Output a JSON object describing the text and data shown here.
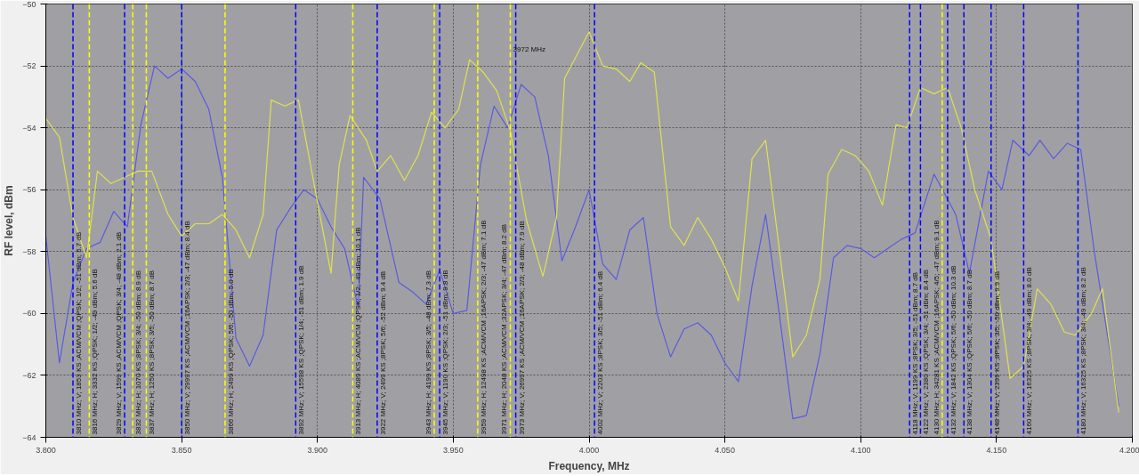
{
  "chart_data": {
    "type": "line",
    "xlabel": "Frequency, MHz",
    "ylabel": "RF level, dBm",
    "xlim": [
      3.8,
      4.2
    ],
    "xticks": [
      {
        "value": 3.8,
        "label": "3.800"
      },
      {
        "value": 3.85,
        "label": "3.850"
      },
      {
        "value": 3.9,
        "label": "3.900"
      },
      {
        "value": 3.95,
        "label": "3.950"
      },
      {
        "value": 4.0,
        "label": "4.000"
      },
      {
        "value": 4.05,
        "label": "4.050"
      },
      {
        "value": 4.1,
        "label": "4.100"
      },
      {
        "value": 4.15,
        "label": "4.150"
      },
      {
        "value": 4.2,
        "label": "4.200"
      }
    ],
    "ylim": [
      -64,
      -50
    ],
    "yticks": [
      -64,
      -62,
      -60,
      -58,
      -56,
      -54,
      -52,
      -50
    ],
    "grid": true,
    "marker": "none",
    "line_style": "solid",
    "series": [
      {
        "color": "#5a5ae0",
        "x": [
          3.8,
          3.805,
          3.81,
          3.815,
          3.82,
          3.825,
          3.83,
          3.835,
          3.84,
          3.845,
          3.85,
          3.855,
          3.86,
          3.865,
          3.87,
          3.875,
          3.88,
          3.885,
          3.89,
          3.895,
          3.9,
          3.905,
          3.91,
          3.915,
          3.917,
          3.923,
          3.93,
          3.935,
          3.94,
          3.945,
          3.95,
          3.955,
          3.96,
          3.965,
          3.97,
          3.975,
          3.98,
          3.985,
          3.99,
          3.995,
          4.0,
          4.005,
          4.01,
          4.015,
          4.02,
          4.025,
          4.03,
          4.035,
          4.04,
          4.045,
          4.05,
          4.055,
          4.06,
          4.065,
          4.07,
          4.075,
          4.08,
          4.085,
          4.09,
          4.095,
          4.1,
          4.105,
          4.11,
          4.115,
          4.12,
          4.127,
          4.135,
          4.14,
          4.147,
          4.152,
          4.156,
          4.162,
          4.166,
          4.171,
          4.176,
          4.181,
          4.186,
          4.195
        ],
        "values": [
          -57.5,
          -61.6,
          -59.0,
          -57.9,
          -57.7,
          -56.7,
          -57.2,
          -53.9,
          -52.0,
          -52.4,
          -52.1,
          -52.5,
          -53.4,
          -55.6,
          -60.8,
          -61.7,
          -60.7,
          -57.3,
          -56.6,
          -56.0,
          -56.3,
          -57.2,
          -57.9,
          -59.8,
          -55.6,
          -56.3,
          -59.0,
          -59.3,
          -59.7,
          -58.6,
          -60.0,
          -59.9,
          -55.2,
          -53.3,
          -54.0,
          -52.6,
          -53.0,
          -54.9,
          -58.3,
          -57.2,
          -56.0,
          -58.4,
          -58.9,
          -57.3,
          -56.9,
          -60.0,
          -61.4,
          -60.5,
          -60.3,
          -60.7,
          -61.6,
          -62.2,
          -59.1,
          -56.8,
          -60.0,
          -63.4,
          -63.3,
          -61.3,
          -58.2,
          -57.8,
          -57.9,
          -58.2,
          -57.9,
          -57.6,
          -57.4,
          -55.5,
          -56.8,
          -58.7,
          -55.4,
          -56.0,
          -54.4,
          -54.9,
          -54.4,
          -55.0,
          -54.5,
          -54.7,
          -58.0,
          -63.0
        ]
      },
      {
        "color": "#e0e050",
        "x": [
          3.8,
          3.805,
          3.81,
          3.815,
          3.819,
          3.824,
          3.829,
          3.834,
          3.839,
          3.845,
          3.85,
          3.855,
          3.86,
          3.865,
          3.87,
          3.875,
          3.88,
          3.883,
          3.888,
          3.893,
          3.9,
          3.905,
          3.908,
          3.912,
          3.918,
          3.922,
          3.927,
          3.932,
          3.937,
          3.942,
          3.947,
          3.952,
          3.956,
          3.961,
          3.966,
          3.971,
          3.977,
          3.983,
          3.988,
          3.991,
          4.0,
          4.005,
          4.01,
          4.015,
          4.019,
          4.024,
          4.03,
          4.035,
          4.04,
          4.045,
          4.05,
          4.055,
          4.06,
          4.065,
          4.075,
          4.08,
          4.085,
          4.088,
          4.093,
          4.098,
          4.103,
          4.108,
          4.113,
          4.117,
          4.122,
          4.127,
          4.132,
          4.137,
          4.142,
          4.148,
          4.155,
          4.16,
          4.165,
          4.17,
          4.175,
          4.179,
          4.185,
          4.189,
          4.195
        ],
        "values": [
          -53.7,
          -54.3,
          -56.9,
          -58.2,
          -55.4,
          -55.8,
          -55.6,
          -55.4,
          -55.4,
          -56.8,
          -57.5,
          -57.1,
          -57.1,
          -56.8,
          -57.3,
          -58.2,
          -56.8,
          -53.1,
          -53.3,
          -53.1,
          -56.4,
          -58.7,
          -55.2,
          -53.6,
          -54.4,
          -55.4,
          -54.9,
          -55.7,
          -54.9,
          -53.5,
          -54.0,
          -53.4,
          -51.8,
          -52.2,
          -52.8,
          -54.1,
          -57.0,
          -58.8,
          -56.9,
          -52.4,
          -50.9,
          -52.0,
          -52.1,
          -52.5,
          -51.9,
          -52.2,
          -57.2,
          -57.8,
          -56.9,
          -57.6,
          -58.5,
          -59.6,
          -55.0,
          -54.4,
          -61.4,
          -60.7,
          -58.9,
          -55.5,
          -54.7,
          -54.9,
          -55.4,
          -56.5,
          -53.9,
          -54.0,
          -52.7,
          -52.9,
          -52.7,
          -54.0,
          -56.0,
          -57.6,
          -62.1,
          -61.7,
          -59.2,
          -59.7,
          -60.6,
          -60.7,
          -60.0,
          -59.2,
          -63.2
        ]
      }
    ],
    "ref_lines": [
      {
        "axis": "x",
        "value": 3.81,
        "color": "#0000ff",
        "line_style": "dashed",
        "label": "3810 MHz; V; 1853 KS ;ACM/VCM ;QPSK; 1/2; -51 dBm; 5.7 dB"
      },
      {
        "axis": "x",
        "value": 3.816,
        "color": "#ffff00",
        "line_style": "dashed",
        "label": "3816 MHz; H; 3332 KS ;QPSK; 1/2; -49 dBm; 5.6 dB"
      },
      {
        "axis": "x",
        "value": 3.829,
        "color": "#0000ff",
        "line_style": "dashed",
        "label": "3829 MHz; V; 1599 KS ;ACM/VCM ;QPSK; 3/4; -48 dBm; 2.1 dB"
      },
      {
        "axis": "x",
        "value": 3.832,
        "color": "#ffff00",
        "line_style": "dashed",
        "label": "3832 MHz; H; 1070 KS ;8PSK; 3/4; -50 dBm; 8.9 dB"
      },
      {
        "axis": "x",
        "value": 3.837,
        "color": "#ffff00",
        "line_style": "dashed",
        "label": "3837 MHz; H; 1250 KS ;8PSK; 3/5; -50 dBm; 8.7 dB"
      },
      {
        "axis": "x",
        "value": 3.85,
        "color": "#0000ff",
        "line_style": "dashed",
        "label": "3850 MHz; V; 29997 KS ;ACM/VCM ;16APSK; 2/3; -47 dBm; 8.4 dB"
      },
      {
        "axis": "x",
        "value": 3.866,
        "color": "#ffff00",
        "line_style": "dashed",
        "label": "3866 MHz; H; 2499 KS ;QPSK; 5/6; -50 dBm; 5.0 dB"
      },
      {
        "axis": "x",
        "value": 3.892,
        "color": "#0000ff",
        "line_style": "dashed",
        "label": "3892 MHz; V; 15598 KS ;QPSK; 1/4; -51 dBm; 1.9 dB"
      },
      {
        "axis": "x",
        "value": 3.913,
        "color": "#ffff00",
        "line_style": "dashed",
        "label": "3913 MHz; H; 4089 KS ;ACM/VCM ;QPSK; 1/2; -49 dBm; 10.1 dB"
      },
      {
        "axis": "x",
        "value": 3.922,
        "color": "#0000ff",
        "line_style": "dashed",
        "label": "3922 MHz; V; 2499 KS ;8PSK; 5/6; -52 dBm; 9.4 dB"
      },
      {
        "axis": "x",
        "value": 3.943,
        "color": "#ffff00",
        "line_style": "dashed",
        "label": "3943 MHz; H; 4199 KS ;8PSK; 3/5; -48 dBm; 7.3 dB"
      },
      {
        "axis": "x",
        "value": 3.945,
        "color": "#0000ff",
        "line_style": "dashed",
        "label": "3945 MHz; V; 1190 KS ;QPSK; 2/3; -51 dBm; 9.8 dB"
      },
      {
        "axis": "x",
        "value": 3.959,
        "color": "#ffff00",
        "line_style": "dashed",
        "label": "3959 MHz; H; 12498 KS ;ACM/VCM ;16APSK; 2/3; -47 dBm; 7.1 dB"
      },
      {
        "axis": "x",
        "value": 3.971,
        "color": "#ffff00",
        "line_style": "dashed",
        "label": "3971 MHz; H; 2048 KS ;ACM/VCM ;32APSK; 3/4; -47 dBm; 8.2 dB"
      },
      {
        "axis": "x",
        "value": 3.973,
        "color": "#0000ff",
        "line_style": "dashed",
        "label": "3973 MHz; V; 26997 KS ;ACM/VCM ;16APSK; 2/3; -48 dBm; 7.9 dB"
      },
      {
        "axis": "x",
        "value": 4.002,
        "color": "#0000ff",
        "line_style": "dashed",
        "label": "4002 MHz; V; 2203 KS ;8PSK; 3/5; -51 dBm; 6.4 dB"
      },
      {
        "axis": "x",
        "value": 4.118,
        "color": "#0000ff",
        "line_style": "dashed",
        "label": "4118 MHz; V; 1199 KS ;8PSK; 3/5; -51 dBm; 8.7 dB"
      },
      {
        "axis": "x",
        "value": 4.122,
        "color": "#0000ff",
        "line_style": "dashed",
        "label": "4122 MHz; V; 2380 KS ;QPSK; 3/4; -51 dBm; 8.4 dB"
      },
      {
        "axis": "x",
        "value": 4.13,
        "color": "#ffff00",
        "line_style": "dashed",
        "label": "4130 MHz; H; 34281 KS ;ACM/VCM ;16APSK; 4/5; -47 dBm; 9.1 dB"
      },
      {
        "axis": "x",
        "value": 4.132,
        "color": "#0000ff",
        "line_style": "dashed",
        "label": "4132 MHz; V; 1842 KS ;QPSK; 5/6; -50 dBm; 10.3 dB"
      },
      {
        "axis": "x",
        "value": 4.138,
        "color": "#0000ff",
        "line_style": "dashed",
        "label": "4138 MHz; V; 1304 KS ;QPSK; 5/6; -50 dBm; 8.7 dB"
      },
      {
        "axis": "x",
        "value": 4.148,
        "color": "#0000ff",
        "line_style": "dashed",
        "label": "4148 MHz; V; 2399 KS ;8PSK; 3/5; -50 dBm; 9.9 dB"
      },
      {
        "axis": "x",
        "value": 4.16,
        "color": "#0000ff",
        "line_style": "dashed",
        "label": "4160 MHz; V; 16325 KS ;8PSK; 3/4; -49 dBm; 8.0 dB"
      },
      {
        "axis": "x",
        "value": 4.18,
        "color": "#0000ff",
        "line_style": "dashed",
        "label": "4180 MHz; V; 16325 KS ;8PSK; 3/4; -49 dBm; 8.2 dB"
      }
    ],
    "annotations": [
      {
        "text": "3972 MHz",
        "x": 3.972,
        "y": -51.6
      }
    ]
  }
}
